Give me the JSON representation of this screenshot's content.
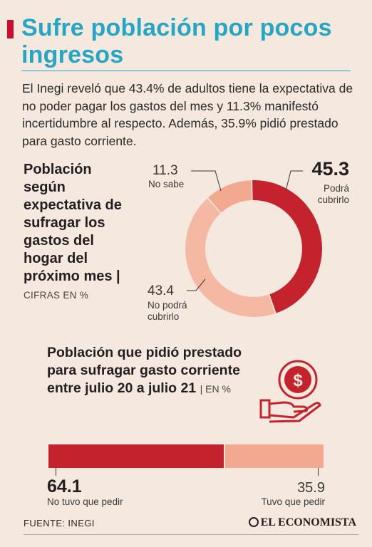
{
  "header": {
    "title": "Sufre población por pocos ingresos",
    "intro": "El Inegi reveló que 43.4% de adultos tiene la expectativa de no poder pagar los gastos del mes y 11.3% manifestó incertidumbre al respecto. Además, 35.9% pidió prestado para gasto corriente."
  },
  "colors": {
    "accent": "#c8102e",
    "title": "#27a6c4",
    "dark_red": "#c4232e",
    "salmon": "#f2a98f",
    "light_salmon": "#f5b9a3",
    "background": "#f5e8de"
  },
  "icons": [
    "money-hand-icon",
    "dollar-coin-icon"
  ],
  "donut_section": {
    "title": "Población según expectativa de sufragar los gastos del hogar del próximo mes |",
    "units": "CIFRAS EN %"
  },
  "bar_section": {
    "title": "Población que pidió prestado para sufragar gasto corriente entre julio 20 a julio 21",
    "units": "| EN %"
  },
  "chart_data": [
    {
      "type": "pie",
      "categories": [
        "Podrá cubrirlo",
        "No podrá cubrirlo",
        "No sabe"
      ],
      "values": [
        45.3,
        43.4,
        11.3
      ],
      "value_labels": [
        "45.3",
        "43.4",
        "11.3"
      ],
      "colors": [
        "#c4232e",
        "#f5b9a3",
        "#f2a98f"
      ],
      "style": "donut"
    },
    {
      "type": "bar",
      "orientation": "horizontal-stacked",
      "categories": [
        "No tuvo que pedir",
        "Tuvo que pedir"
      ],
      "values": [
        64.1,
        35.9
      ],
      "value_labels": [
        "64.1",
        "35.9"
      ],
      "colors": [
        "#c4232e",
        "#f2a98f"
      ]
    }
  ],
  "footer": {
    "source": "FUENTE: INEGI",
    "brand": "EL ECONOMISTA"
  }
}
